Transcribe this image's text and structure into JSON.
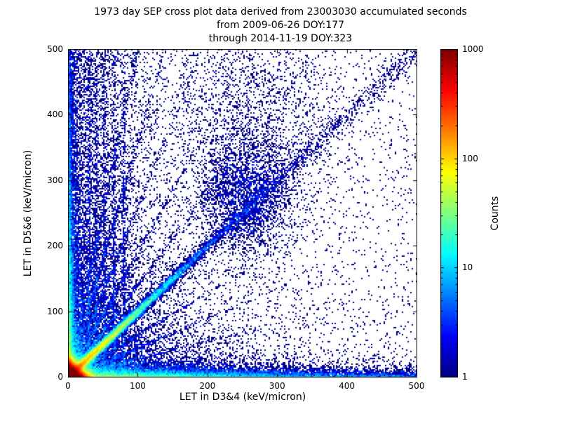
{
  "chart_data": {
    "type": "heatmap",
    "title": "1973 day SEP cross plot data derived from 23003030 accumulated seconds",
    "subtitle1": "from 2009-06-26 DOY:177",
    "subtitle2": "through 2014-11-19 DOY:323",
    "xlabel": "LET in D3&4 (keV/micron)",
    "ylabel": "LET in D5&6 (keV/micron)",
    "xlim": [
      0,
      500
    ],
    "ylim": [
      0,
      500
    ],
    "xticks": [
      "0",
      "100",
      "200",
      "300",
      "400",
      "500"
    ],
    "yticks": [
      "0",
      "100",
      "200",
      "300",
      "400",
      "500"
    ],
    "grid": false,
    "legend": "none",
    "colorbar": {
      "label": "Counts",
      "scale": "log",
      "min": 1,
      "max": 1000,
      "ticks": [
        "1",
        "10",
        "100",
        "1000"
      ],
      "colormap": "jet"
    },
    "colors": {
      "background": "#ffffff",
      "frame": "#000000",
      "low_count": "#00007f",
      "high_count": "#7f0000"
    },
    "density_features": [
      {
        "kind": "xy",
        "name": "origin-core",
        "n": 300000,
        "x": {
          "dist": "exp",
          "scale": 5,
          "max": 500
        },
        "y": {
          "dist": "exp",
          "scale": 5,
          "max": 500
        }
      },
      {
        "kind": "xy",
        "name": "bottom-band",
        "n": 12000,
        "x": {
          "dist": "exp",
          "scale": 150,
          "max": 500
        },
        "y": {
          "dist": "exp",
          "scale": 6,
          "max": 60
        }
      },
      {
        "kind": "xy",
        "name": "bottom-band-far",
        "n": 2500,
        "x": {
          "dist": "uniform",
          "min": 0,
          "max": 500
        },
        "y": {
          "dist": "exp",
          "scale": 5,
          "max": 40
        }
      },
      {
        "kind": "xy",
        "name": "left-band",
        "n": 8000,
        "x": {
          "dist": "exp",
          "scale": 4,
          "max": 40
        },
        "y": {
          "dist": "exp",
          "scale": 120,
          "max": 500
        }
      },
      {
        "kind": "xy",
        "name": "left-band-far",
        "n": 1500,
        "x": {
          "dist": "exp",
          "scale": 4,
          "max": 40
        },
        "y": {
          "dist": "uniform",
          "min": 0,
          "max": 500
        }
      },
      {
        "kind": "diagonal",
        "name": "proton-diagonal",
        "n": 25000,
        "slope": 1.0,
        "sigma": 3,
        "t": {
          "dist": "exp",
          "scale": 50,
          "max": 420
        }
      },
      {
        "kind": "diagonal",
        "name": "diagonal-sparse",
        "n": 1400,
        "slope": 1.0,
        "sigma": 8,
        "t": {
          "dist": "uniform",
          "min": 0,
          "max": 500
        }
      },
      {
        "kind": "blob",
        "name": "mid-diagonal-cluster",
        "n": 3000,
        "cx": 255,
        "cy": 275,
        "sx": 35,
        "sy": 45
      },
      {
        "kind": "blob",
        "name": "upper-cluster",
        "n": 1500,
        "cx": 270,
        "cy": 400,
        "sx": 60,
        "sy": 70
      },
      {
        "kind": "rays",
        "name": "upper-rays",
        "nper": 700,
        "sigma": 1.5,
        "slopes": [
          1.4,
          1.9,
          2.6,
          3.6,
          5.0
        ],
        "t": {
          "dist": "exp",
          "scale": 55,
          "max": 350
        }
      },
      {
        "kind": "rays",
        "name": "lower-rays",
        "nper": 450,
        "sigma": 1.5,
        "slopes": [
          0.28,
          0.45,
          0.65
        ],
        "t": {
          "dist": "exp",
          "scale": 80,
          "max": 400
        }
      },
      {
        "kind": "streaks",
        "name": "vertical-streaks",
        "nper": 450,
        "sigma": 1.3,
        "xs": [
          30,
          40,
          52,
          66,
          80
        ],
        "y": {
          "dist": "exp",
          "scale": 280,
          "max": 490
        }
      },
      {
        "kind": "xy",
        "name": "left-scatter",
        "n": 5000,
        "x": {
          "dist": "exp",
          "scale": 55,
          "max": 500
        },
        "y": {
          "dist": "uniform",
          "min": 0,
          "max": 500
        }
      },
      {
        "kind": "xy",
        "name": "lower-fill",
        "n": 4000,
        "x": {
          "dist": "exp",
          "scale": 130,
          "max": 500
        },
        "y": {
          "dist": "exp",
          "scale": 45,
          "max": 500
        }
      },
      {
        "kind": "xy",
        "name": "upper-fill",
        "n": 3500,
        "x": {
          "dist": "exp",
          "scale": 45,
          "max": 500
        },
        "y": {
          "dist": "exp",
          "scale": 160,
          "max": 500
        }
      },
      {
        "kind": "xy",
        "name": "background",
        "n": 2600,
        "x": {
          "dist": "uniform",
          "min": 0,
          "max": 500
        },
        "y": {
          "dist": "uniform",
          "min": 0,
          "max": 500
        }
      }
    ]
  }
}
